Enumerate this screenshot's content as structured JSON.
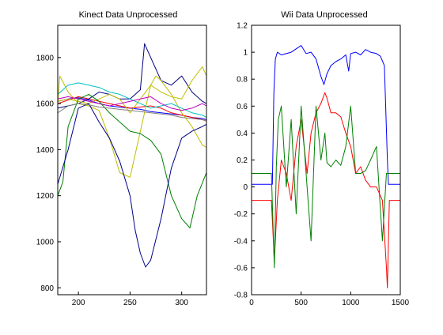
{
  "chart_data": [
    {
      "type": "line",
      "title": "Kinect Data Unprocessed",
      "xlabel": "",
      "ylabel": "",
      "xlim": [
        180,
        324
      ],
      "ylim": [
        770,
        1940
      ],
      "x_ticks": [
        200,
        250,
        300
      ],
      "y_ticks": [
        800,
        1000,
        1200,
        1400,
        1600,
        1800
      ],
      "grid": false,
      "series": [
        {
          "color": "#0000ff",
          "x": [
            180,
            190,
            200,
            210,
            220,
            230,
            240,
            250,
            260,
            265,
            270,
            280,
            290,
            300,
            310,
            320,
            324
          ],
          "y": [
            1610,
            1620,
            1625,
            1615,
            1600,
            1590,
            1585,
            1580,
            1575,
            1570,
            1565,
            1560,
            1555,
            1550,
            1540,
            1535,
            1530
          ]
        },
        {
          "color": "#ff0000",
          "x": [
            180,
            190,
            200,
            210,
            220,
            230,
            240,
            250,
            260,
            270,
            280,
            290,
            300,
            310,
            320,
            324
          ],
          "y": [
            1600,
            1615,
            1630,
            1620,
            1610,
            1600,
            1590,
            1580,
            1585,
            1590,
            1580,
            1560,
            1550,
            1540,
            1530,
            1525
          ]
        },
        {
          "color": "#000080",
          "x": [
            180,
            190,
            200,
            210,
            220,
            230,
            240,
            250,
            260,
            264,
            270,
            280,
            290,
            300,
            310,
            320,
            324
          ],
          "y": [
            1580,
            1590,
            1600,
            1620,
            1650,
            1640,
            1620,
            1620,
            1660,
            1860,
            1800,
            1700,
            1680,
            1720,
            1650,
            1610,
            1600
          ]
        },
        {
          "color": "#bfbf00",
          "x": [
            180,
            182,
            190,
            200,
            210,
            220,
            230,
            240,
            250,
            260,
            270,
            275,
            280,
            290,
            300,
            310,
            320,
            324
          ],
          "y": [
            1600,
            1720,
            1650,
            1600,
            1590,
            1570,
            1450,
            1300,
            1280,
            1480,
            1680,
            1720,
            1700,
            1640,
            1560,
            1500,
            1420,
            1410
          ]
        },
        {
          "color": "#bfbf00",
          "x": [
            180,
            190,
            200,
            210,
            220,
            230,
            240,
            250,
            260,
            270,
            280,
            290,
            300,
            310,
            320,
            324
          ],
          "y": [
            1610,
            1620,
            1610,
            1600,
            1620,
            1640,
            1620,
            1560,
            1620,
            1680,
            1650,
            1630,
            1620,
            1700,
            1760,
            1720
          ]
        },
        {
          "color": "#00bfbf",
          "x": [
            180,
            190,
            200,
            210,
            220,
            230,
            240,
            250,
            260,
            270,
            280,
            290,
            300,
            310,
            320,
            324
          ],
          "y": [
            1640,
            1680,
            1690,
            1680,
            1670,
            1650,
            1640,
            1620,
            1600,
            1580,
            1590,
            1600,
            1580,
            1560,
            1550,
            1540
          ]
        },
        {
          "color": "#bf00bf",
          "x": [
            180,
            190,
            200,
            210,
            220,
            230,
            240,
            250,
            260,
            270,
            280,
            290,
            300,
            310,
            320,
            324
          ],
          "y": [
            1620,
            1630,
            1620,
            1610,
            1600,
            1590,
            1600,
            1610,
            1620,
            1630,
            1600,
            1580,
            1570,
            1580,
            1600,
            1590
          ]
        },
        {
          "color": "#008000",
          "x": [
            180,
            185,
            190,
            200,
            210,
            220,
            230,
            240,
            250,
            260,
            270,
            280,
            290,
            300,
            308,
            315,
            324
          ],
          "y": [
            1200,
            1260,
            1500,
            1620,
            1640,
            1610,
            1560,
            1520,
            1480,
            1470,
            1440,
            1380,
            1200,
            1100,
            1060,
            1200,
            1300
          ]
        },
        {
          "color": "#00008b",
          "x": [
            180,
            190,
            200,
            210,
            220,
            230,
            240,
            250,
            255,
            260,
            265,
            270,
            280,
            290,
            300,
            310,
            320,
            324
          ],
          "y": [
            1250,
            1400,
            1580,
            1600,
            1520,
            1450,
            1350,
            1200,
            1050,
            950,
            890,
            920,
            1100,
            1320,
            1450,
            1480,
            1500,
            1510
          ]
        },
        {
          "color": "#808080",
          "x": [
            180,
            190,
            200,
            210,
            220,
            230,
            240,
            250,
            260,
            270,
            280,
            290,
            300,
            310,
            320,
            324
          ],
          "y": [
            1560,
            1590,
            1600,
            1595,
            1585,
            1580,
            1575,
            1570,
            1565,
            1560,
            1555,
            1550,
            1540,
            1535,
            1530,
            1525
          ]
        }
      ]
    },
    {
      "type": "line",
      "title": "Wii Data Unprocessed",
      "xlabel": "",
      "ylabel": "",
      "xlim": [
        0,
        1500
      ],
      "ylim": [
        -0.8,
        1.2
      ],
      "x_ticks": [
        0,
        500,
        1000,
        1500
      ],
      "y_ticks": [
        -0.8,
        -0.6,
        -0.4,
        -0.2,
        0,
        0.2,
        0.4,
        0.6,
        0.8,
        1,
        1.2
      ],
      "grid": false,
      "series": [
        {
          "color": "#0000ff",
          "x": [
            0,
            210,
            225,
            240,
            260,
            300,
            400,
            500,
            550,
            600,
            650,
            700,
            730,
            760,
            800,
            850,
            900,
            950,
            980,
            1000,
            1050,
            1100,
            1150,
            1200,
            1260,
            1300,
            1340,
            1370,
            1380,
            1500
          ],
          "y": [
            0.02,
            0.02,
            0.7,
            0.95,
            1.0,
            0.98,
            1.0,
            1.05,
            0.99,
            1.0,
            0.95,
            0.82,
            0.76,
            0.84,
            0.9,
            0.93,
            0.95,
            0.98,
            0.86,
            0.99,
            1.0,
            0.98,
            1.02,
            1.0,
            0.99,
            0.97,
            0.9,
            0.2,
            0.02,
            0.02
          ]
        },
        {
          "color": "#ff0000",
          "x": [
            0,
            100,
            200,
            230,
            260,
            300,
            350,
            400,
            450,
            500,
            560,
            600,
            650,
            700,
            740,
            760,
            800,
            850,
            900,
            950,
            1000,
            1050,
            1100,
            1150,
            1200,
            1260,
            1320,
            1360,
            1370,
            1390,
            1420,
            1500
          ],
          "y": [
            -0.1,
            -0.1,
            -0.1,
            -0.55,
            -0.1,
            0.2,
            0.1,
            -0.1,
            0.3,
            0.5,
            0.1,
            0.4,
            0.55,
            0.62,
            0.7,
            0.66,
            0.55,
            0.55,
            0.52,
            0.4,
            0.3,
            0.1,
            0.15,
            0.05,
            0.0,
            0.0,
            -0.1,
            -0.6,
            -0.75,
            -0.1,
            -0.1,
            -0.1
          ]
        },
        {
          "color": "#008000",
          "x": [
            0,
            100,
            200,
            230,
            250,
            270,
            300,
            350,
            400,
            450,
            500,
            560,
            600,
            650,
            700,
            740,
            760,
            800,
            850,
            900,
            950,
            1000,
            1050,
            1100,
            1150,
            1200,
            1260,
            1320,
            1360,
            1370,
            1390,
            1420,
            1500
          ],
          "y": [
            0.1,
            0.1,
            0.1,
            -0.6,
            0.15,
            0.5,
            0.6,
            0.0,
            0.5,
            -0.2,
            0.6,
            0.0,
            -0.4,
            0.6,
            0.2,
            0.4,
            0.18,
            0.15,
            0.2,
            0.16,
            0.3,
            0.6,
            0.1,
            0.1,
            0.12,
            0.2,
            0.3,
            -0.4,
            0.1,
            0.1,
            0.1,
            0.1,
            0.1
          ]
        }
      ]
    }
  ]
}
